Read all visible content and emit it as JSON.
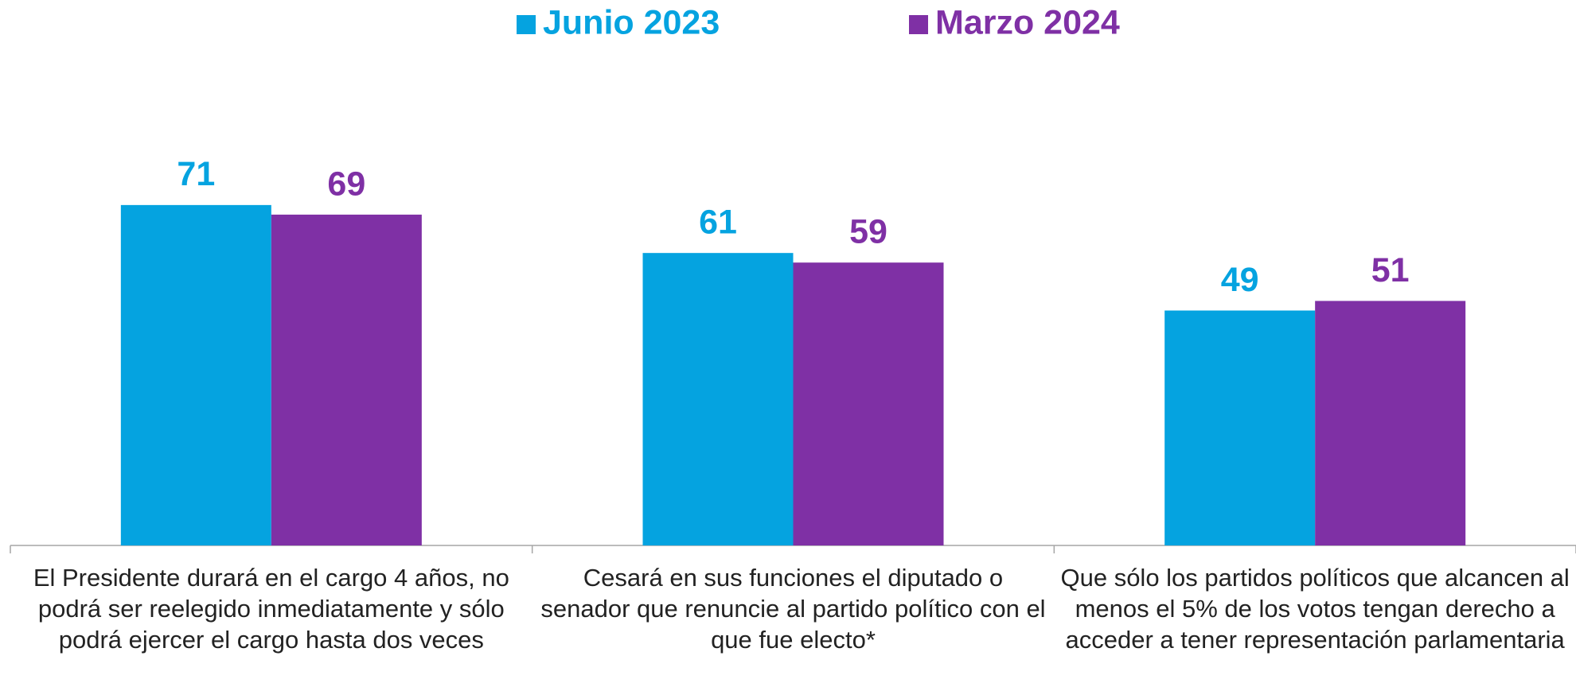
{
  "chart_data": {
    "type": "bar",
    "categories": [
      "El Presidente durará en el cargo 4 años, no podrá ser reelegido inmediatamente y sólo podrá ejercer el cargo hasta dos veces",
      "Cesará en sus funciones el diputado o senador que renuncie al partido político con el que fue electo*",
      "Que sólo los partidos políticos que alcancen al menos el 5% de los votos tengan derecho a acceder a tener representación parlamentaria"
    ],
    "series": [
      {
        "name": "Junio 2023",
        "color": "#05a3e0",
        "values": [
          71,
          61,
          49
        ]
      },
      {
        "name": "Marzo 2024",
        "color": "#7f30a5",
        "values": [
          69,
          59,
          51
        ]
      }
    ],
    "ylim": [
      0,
      100
    ],
    "legend": "top"
  }
}
